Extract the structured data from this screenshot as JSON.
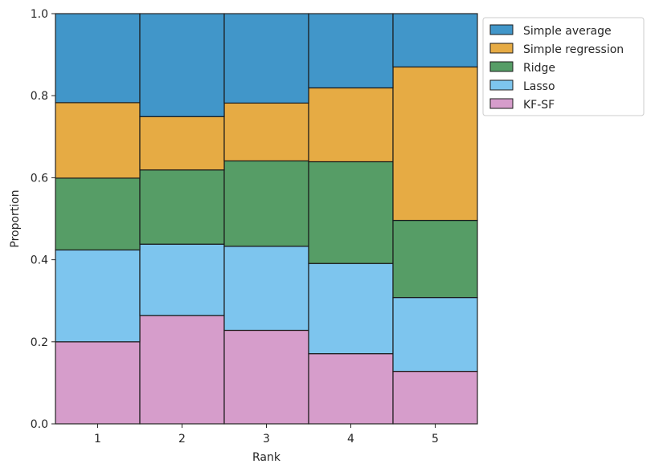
{
  "chart_data": {
    "type": "bar",
    "stacked": true,
    "categories": [
      "1",
      "2",
      "3",
      "4",
      "5"
    ],
    "series": [
      {
        "name": "KF-SF",
        "color": "#d69dcb",
        "values": [
          0.2,
          0.264,
          0.228,
          0.171,
          0.128
        ]
      },
      {
        "name": "Lasso",
        "color": "#7dc5ee",
        "values": [
          0.224,
          0.174,
          0.205,
          0.22,
          0.18
        ]
      },
      {
        "name": "Ridge",
        "color": "#569d66",
        "values": [
          0.175,
          0.181,
          0.208,
          0.248,
          0.188
        ]
      },
      {
        "name": "Simple regression",
        "color": "#e6ab44",
        "values": [
          0.184,
          0.13,
          0.141,
          0.18,
          0.374
        ]
      },
      {
        "name": "Simple average",
        "color": "#4196c9",
        "values": [
          0.217,
          0.251,
          0.218,
          0.181,
          0.13
        ]
      }
    ],
    "legend_order": [
      "Simple average",
      "Simple regression",
      "Ridge",
      "Lasso",
      "KF-SF"
    ],
    "xlabel": "Rank",
    "ylabel": "Proportion",
    "ylim": [
      0,
      1.0
    ],
    "yticks": [
      "0.0",
      "0.2",
      "0.4",
      "0.6",
      "0.8",
      "1.0"
    ],
    "legend_position": "outside-top-right",
    "grid": false
  }
}
